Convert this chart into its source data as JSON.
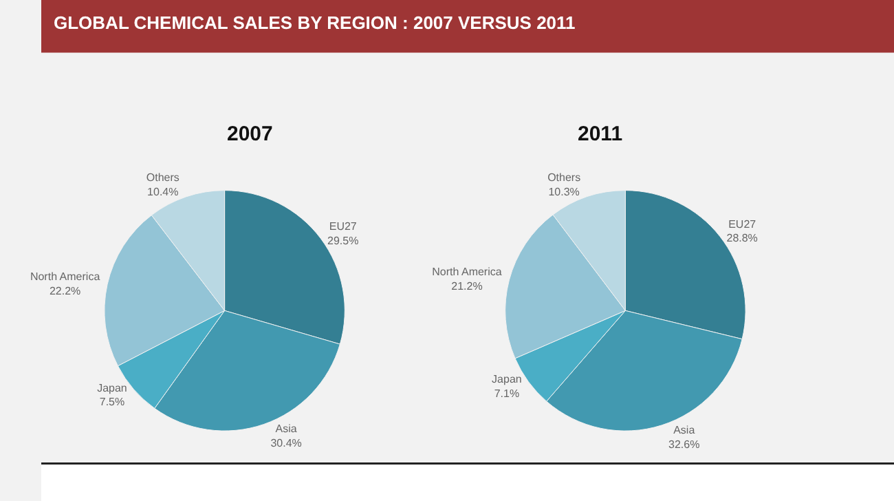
{
  "chart_data": [
    {
      "type": "pie",
      "title": "2007",
      "annotations": [
        "GLOBAL CHEMICAL SALES BY REGION : 2007 VERSUS 2011"
      ],
      "categories": [
        "EU27",
        "Asia",
        "Japan",
        "North America",
        "Others"
      ],
      "values": [
        29.5,
        30.4,
        7.5,
        22.2,
        10.4
      ],
      "value_labels": [
        "29.5%",
        "30.4%",
        "7.5%",
        "22.2%",
        "10.4%"
      ],
      "colors": [
        "#347f93",
        "#4299b0",
        "#4aaec6",
        "#93c4d6",
        "#b9d8e3"
      ]
    },
    {
      "type": "pie",
      "title": "2011",
      "categories": [
        "EU27",
        "Asia",
        "Japan",
        "North America",
        "Others"
      ],
      "values": [
        28.8,
        32.6,
        7.1,
        21.2,
        10.3
      ],
      "value_labels": [
        "28.8%",
        "32.6%",
        "7.1%",
        "21.2%",
        "10.3%"
      ],
      "colors": [
        "#347f93",
        "#4299b0",
        "#4aaec6",
        "#93c4d6",
        "#b9d8e3"
      ]
    }
  ]
}
